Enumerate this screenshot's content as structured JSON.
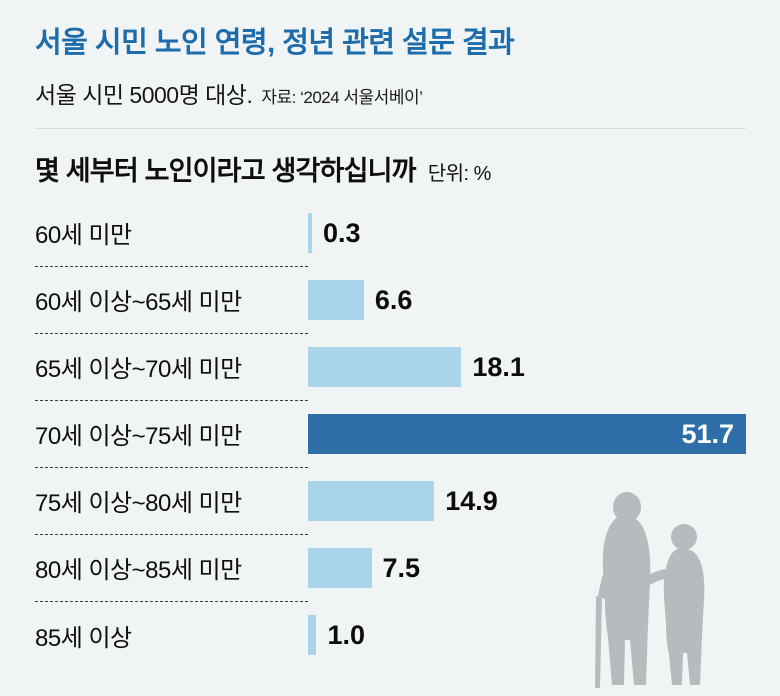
{
  "header": {
    "title": "서울 시민 노인 연령, 정년 관련 설문 결과",
    "subtitle": "서울 시민 5000명 대상.",
    "source": "자료: ‘2024 서울서베이’"
  },
  "chart_data": {
    "type": "bar",
    "orientation": "horizontal",
    "title": "몇 세부터 노인이라고 생각하십니까",
    "unit_label": "단위: %",
    "categories": [
      "60세 미만",
      "60세 이상~65세 미만",
      "65세 이상~70세 미만",
      "70세 이상~75세 미만",
      "75세 이상~80세 미만",
      "80세 이상~85세 미만",
      "85세 이상"
    ],
    "values": [
      0.3,
      6.6,
      18.1,
      51.7,
      14.9,
      7.5,
      1.0
    ],
    "value_labels": [
      "0.3",
      "6.6",
      "18.1",
      "51.7",
      "14.9",
      "7.5",
      "1.0"
    ],
    "highlight_index": 3,
    "xlim": [
      0,
      51.7
    ],
    "grid": false,
    "legend": "none"
  },
  "colors": {
    "background": "#f0f4f4",
    "title_blue": "#1d6cab",
    "bar": "#a9d4e9",
    "bar_highlight": "#2d6ea8",
    "silhouette": "#b6bcbe"
  }
}
